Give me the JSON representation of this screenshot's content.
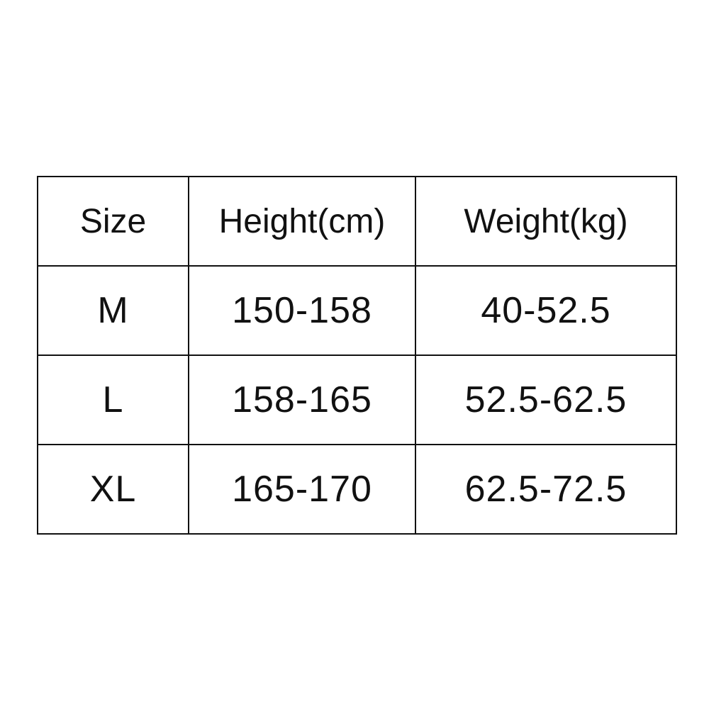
{
  "table": {
    "headers": [
      "Size",
      "Height(cm)",
      "Weight(kg)"
    ],
    "rows": [
      [
        "M",
        "150-158",
        "40-52.5"
      ],
      [
        "L",
        "158-165",
        "52.5-62.5"
      ],
      [
        "XL",
        "165-170",
        "62.5-72.5"
      ]
    ]
  }
}
